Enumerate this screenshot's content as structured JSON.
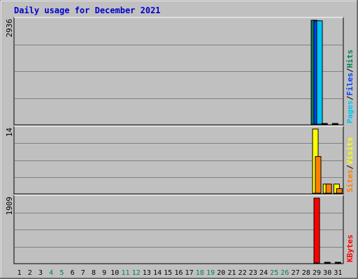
{
  "title": "Daily usage for December 2021",
  "colors": {
    "background": "#c0c0c0",
    "title": "#0000cc",
    "hits": "#00805c",
    "files": "#0040ff",
    "pages": "#00c8f0",
    "visits": "#ffff00",
    "sites": "#ff8000",
    "kbytes": "#ff0000",
    "weekend_label": "#00805c",
    "grid": "#808080"
  },
  "chart_data": {
    "type": "bar",
    "title": "Daily usage for December 2021",
    "categories": [
      "1",
      "2",
      "3",
      "4",
      "5",
      "6",
      "7",
      "8",
      "9",
      "10",
      "11",
      "12",
      "13",
      "14",
      "15",
      "16",
      "17",
      "18",
      "19",
      "20",
      "21",
      "22",
      "23",
      "24",
      "25",
      "26",
      "27",
      "28",
      "29",
      "30",
      "31"
    ],
    "weekend_days": [
      "4",
      "5",
      "11",
      "12",
      "18",
      "19",
      "25",
      "26"
    ],
    "panels": [
      {
        "name": "hits-files-pages",
        "ymax_label": "2936",
        "ylim": [
          0,
          2936
        ],
        "legend": [
          {
            "label": "Pages",
            "color_key": "pages"
          },
          {
            "label": "/",
            "color_key": "sep"
          },
          {
            "label": "Files",
            "color_key": "files"
          },
          {
            "label": "/",
            "color_key": "sep"
          },
          {
            "label": "Hits",
            "color_key": "hits"
          }
        ],
        "series": [
          {
            "name": "Hits",
            "color_key": "hits",
            "values": [
              0,
              0,
              0,
              0,
              0,
              0,
              0,
              0,
              0,
              0,
              0,
              0,
              0,
              0,
              0,
              0,
              0,
              0,
              0,
              0,
              0,
              0,
              0,
              0,
              0,
              0,
              0,
              0,
              2936,
              8,
              8
            ]
          },
          {
            "name": "Files",
            "color_key": "files",
            "values": [
              0,
              0,
              0,
              0,
              0,
              0,
              0,
              0,
              0,
              0,
              0,
              0,
              0,
              0,
              0,
              0,
              0,
              0,
              0,
              0,
              0,
              0,
              0,
              0,
              0,
              0,
              0,
              0,
              2920,
              0,
              0
            ]
          },
          {
            "name": "Pages",
            "color_key": "pages",
            "values": [
              0,
              0,
              0,
              0,
              0,
              0,
              0,
              0,
              0,
              0,
              0,
              0,
              0,
              0,
              0,
              0,
              0,
              0,
              0,
              0,
              0,
              0,
              0,
              0,
              0,
              0,
              0,
              0,
              2920,
              0,
              0
            ]
          }
        ]
      },
      {
        "name": "visits-sites",
        "ymax_label": "14",
        "ylim": [
          0,
          14
        ],
        "legend": [
          {
            "label": "Sites",
            "color_key": "sites"
          },
          {
            "label": "/",
            "color_key": "sep"
          },
          {
            "label": "Visits",
            "color_key": "visits"
          }
        ],
        "series": [
          {
            "name": "Visits",
            "color_key": "visits",
            "values": [
              0,
              0,
              0,
              0,
              0,
              0,
              0,
              0,
              0,
              0,
              0,
              0,
              0,
              0,
              0,
              0,
              0,
              0,
              0,
              0,
              0,
              0,
              0,
              0,
              0,
              0,
              0,
              0,
              14,
              2,
              2
            ]
          },
          {
            "name": "Sites",
            "color_key": "sites",
            "values": [
              0,
              0,
              0,
              0,
              0,
              0,
              0,
              0,
              0,
              0,
              0,
              0,
              0,
              0,
              0,
              0,
              0,
              0,
              0,
              0,
              0,
              0,
              0,
              0,
              0,
              0,
              0,
              0,
              8,
              2,
              1
            ]
          }
        ]
      },
      {
        "name": "kbytes",
        "ymax_label": "1909",
        "ylim": [
          0,
          1909
        ],
        "legend": [
          {
            "label": "KBytes",
            "color_key": "kbytes"
          }
        ],
        "series": [
          {
            "name": "KBytes",
            "color_key": "kbytes",
            "values": [
              0,
              0,
              0,
              0,
              0,
              0,
              0,
              0,
              0,
              0,
              0,
              0,
              0,
              0,
              0,
              0,
              0,
              0,
              0,
              0,
              0,
              0,
              0,
              0,
              0,
              0,
              0,
              0,
              1909,
              8,
              8
            ]
          }
        ]
      }
    ]
  }
}
